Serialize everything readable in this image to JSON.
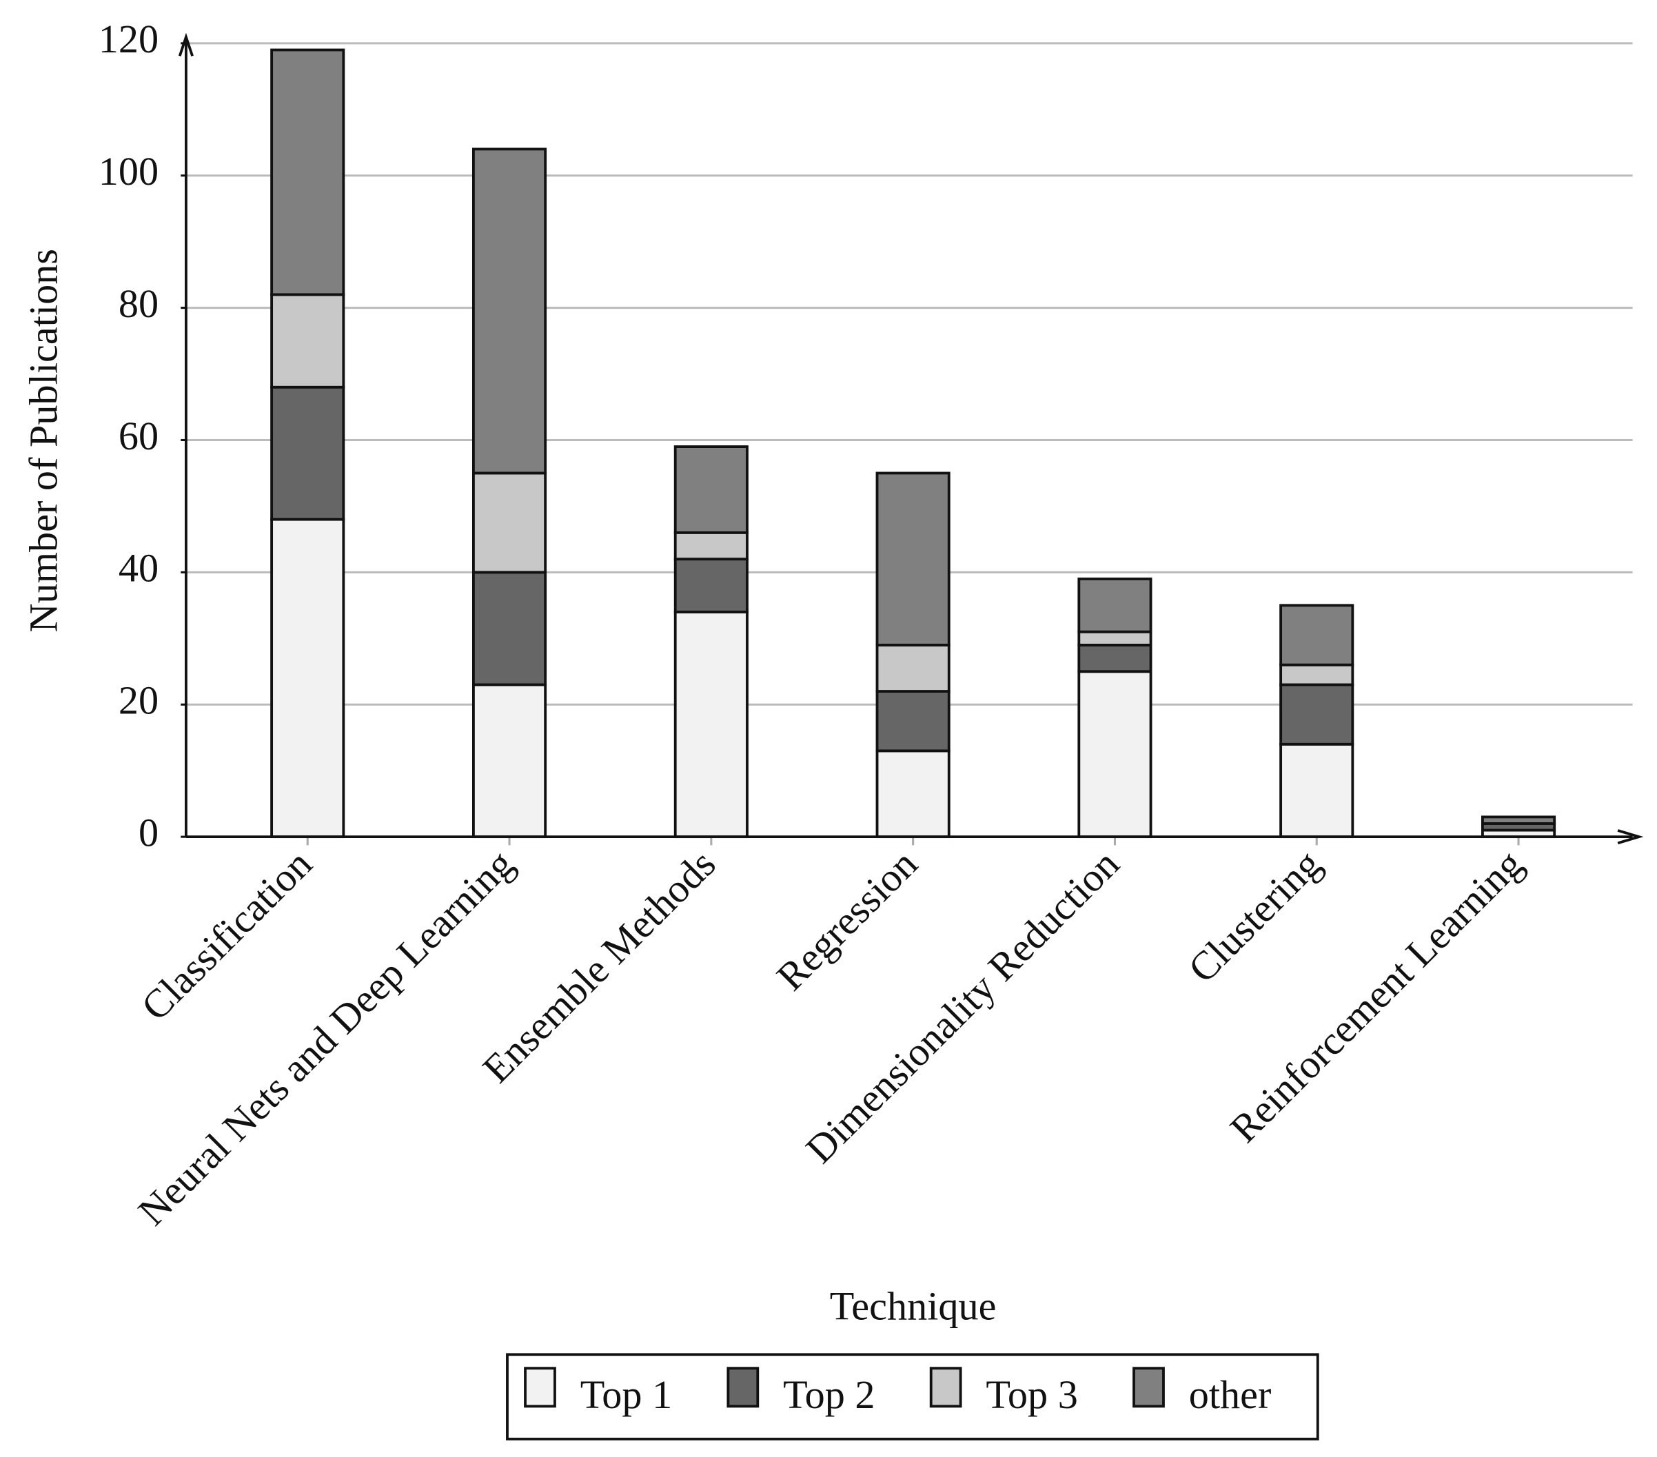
{
  "chart_data": {
    "type": "stacked_bar",
    "x_label": "Technique",
    "y_label": "Number of Publications",
    "categories": [
      "Classification",
      "Neural Nets and Deep Learning",
      "Ensemble Methods",
      "Regression",
      "Dimensionality Reduction",
      "Clustering",
      "Reinforcement Learning"
    ],
    "series": [
      {
        "name": "Top 1",
        "color": "#f2f2f2",
        "values": [
          48,
          23,
          34,
          13,
          25,
          14,
          1
        ]
      },
      {
        "name": "Top 2",
        "color": "#666666",
        "values": [
          20,
          17,
          8,
          9,
          4,
          9,
          1
        ]
      },
      {
        "name": "Top 3",
        "color": "#c8c8c8",
        "values": [
          14,
          15,
          4,
          7,
          2,
          3,
          0
        ]
      },
      {
        "name": "other",
        "color": "#808080",
        "values": [
          37,
          49,
          13,
          26,
          8,
          9,
          1
        ]
      }
    ],
    "ylim": [
      0,
      120
    ],
    "yticks": [
      0,
      20,
      40,
      60,
      80,
      100,
      120
    ],
    "grid": true,
    "legend": "bottom"
  }
}
